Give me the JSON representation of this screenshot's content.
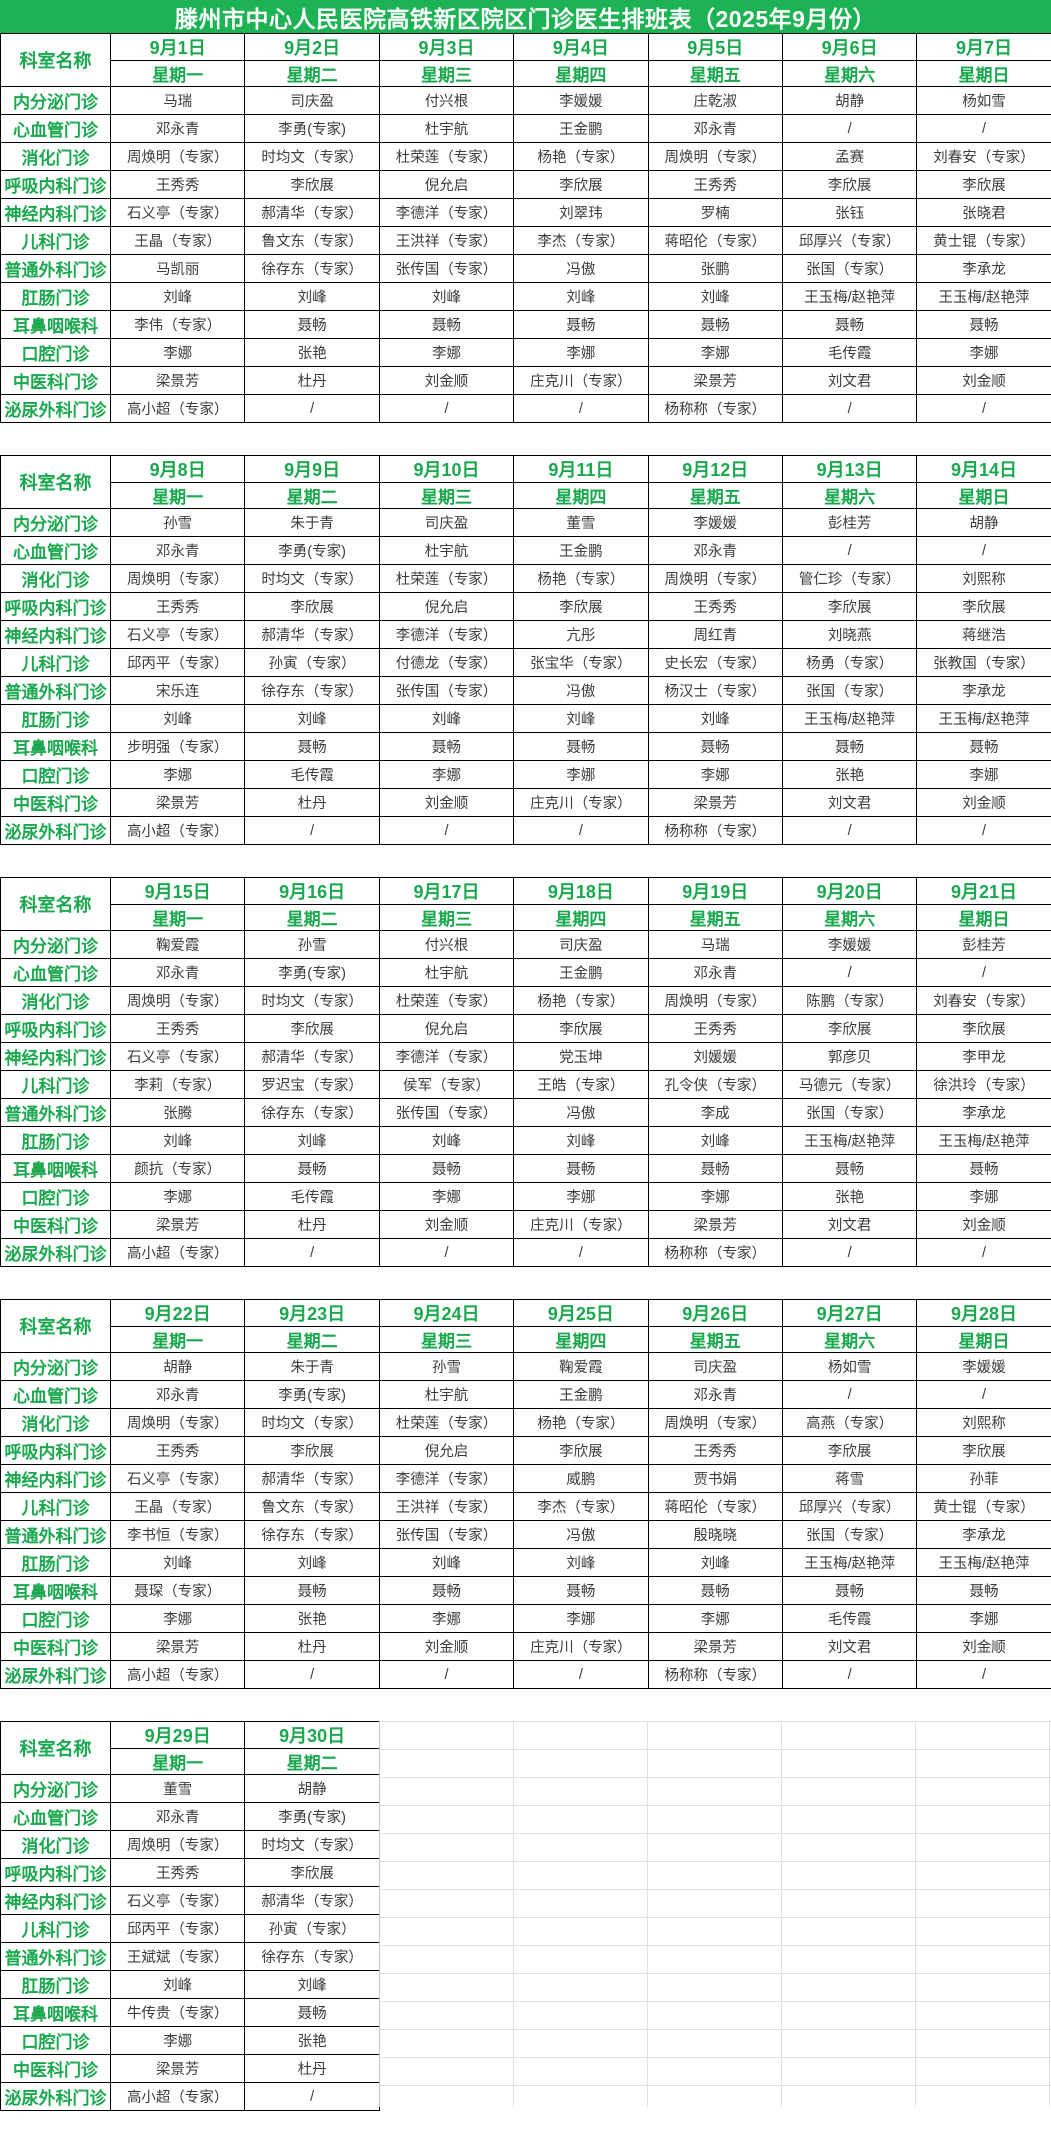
{
  "title": "滕州市中心人民医院高铁新区院区门诊医生排班表（2025年9月份）",
  "corner_label": "科室名称",
  "colors": {
    "title_bg": "#1db253",
    "title_text": "#ffffff",
    "accent_green": "#1aa84e",
    "cell_text": "#3c3c3c",
    "grid_line": "#000000",
    "faint_grid": "#dddddd"
  },
  "departments": [
    "内分泌门诊",
    "心血管门诊",
    "消化门诊",
    "呼吸内科门诊",
    "神经内科门诊",
    "儿科门诊",
    "普通外科门诊",
    "肛肠门诊",
    "耳鼻咽喉科",
    "口腔门诊",
    "中医科门诊",
    "泌尿外科门诊"
  ],
  "weeks": [
    {
      "dates": [
        "9月1日",
        "9月2日",
        "9月3日",
        "9月4日",
        "9月5日",
        "9月6日",
        "9月7日"
      ],
      "weekdays": [
        "星期一",
        "星期二",
        "星期三",
        "星期四",
        "星期五",
        "星期六",
        "星期日"
      ],
      "rows": [
        [
          "马瑞",
          "司庆盈",
          "付兴根",
          "李媛媛",
          "庄乾淑",
          "胡静",
          "杨如雪"
        ],
        [
          "邓永青",
          "李勇(专家)",
          "杜宇航",
          "王金鹏",
          "邓永青",
          "/",
          "/"
        ],
        [
          "周焕明（专家）",
          "时均文（专家）",
          "杜荣莲（专家）",
          "杨艳（专家）",
          "周焕明（专家）",
          "孟赛",
          "刘春安（专家）"
        ],
        [
          "王秀秀",
          "李欣展",
          "倪允启",
          "李欣展",
          "王秀秀",
          "李欣展",
          "李欣展"
        ],
        [
          "石义亭（专家）",
          "郝清华（专家）",
          "李德洋（专家）",
          "刘翠玮",
          "罗楠",
          "张钰",
          "张晓君"
        ],
        [
          "王晶（专家）",
          "鲁文东（专家）",
          "王洪祥（专家）",
          "李杰（专家）",
          "蒋昭伦（专家）",
          "邱厚兴（专家）",
          "黄士锟（专家）"
        ],
        [
          "马凯丽",
          "徐存东（专家）",
          "张传国（专家）",
          "冯傲",
          "张鹏",
          "张国（专家）",
          "李承龙"
        ],
        [
          "刘峰",
          "刘峰",
          "刘峰",
          "刘峰",
          "刘峰",
          "王玉梅/赵艳萍",
          "王玉梅/赵艳萍"
        ],
        [
          "李伟（专家）",
          "聂畅",
          "聂畅",
          "聂畅",
          "聂畅",
          "聂畅",
          "聂畅"
        ],
        [
          "李娜",
          "张艳",
          "李娜",
          "李娜",
          "李娜",
          "毛传霞",
          "李娜"
        ],
        [
          "梁景芳",
          "杜丹",
          "刘金顺",
          "庄克川（专家）",
          "梁景芳",
          "刘文君",
          "刘金顺"
        ],
        [
          "高小超（专家）",
          "/",
          "/",
          "/",
          "杨称称（专家）",
          "/",
          "/"
        ]
      ]
    },
    {
      "dates": [
        "9月8日",
        "9月9日",
        "9月10日",
        "9月11日",
        "9月12日",
        "9月13日",
        "9月14日"
      ],
      "weekdays": [
        "星期一",
        "星期二",
        "星期三",
        "星期四",
        "星期五",
        "星期六",
        "星期日"
      ],
      "rows": [
        [
          "孙雪",
          "朱于青",
          "司庆盈",
          "董雪",
          "李媛媛",
          "彭桂芳",
          "胡静"
        ],
        [
          "邓永青",
          "李勇(专家)",
          "杜宇航",
          "王金鹏",
          "邓永青",
          "/",
          "/"
        ],
        [
          "周焕明（专家）",
          "时均文（专家）",
          "杜荣莲（专家）",
          "杨艳（专家）",
          "周焕明（专家）",
          "管仁珍（专家）",
          "刘熙称"
        ],
        [
          "王秀秀",
          "李欣展",
          "倪允启",
          "李欣展",
          "王秀秀",
          "李欣展",
          "李欣展"
        ],
        [
          "石义亭（专家）",
          "郝清华（专家）",
          "李德洋（专家）",
          "亢彤",
          "周红青",
          "刘晓燕",
          "蒋继浩"
        ],
        [
          "邱丙平（专家）",
          "孙寅（专家）",
          "付德龙（专家）",
          "张宝华（专家）",
          "史长宏（专家）",
          "杨勇（专家）",
          "张教国（专家）"
        ],
        [
          "宋乐连",
          "徐存东（专家）",
          "张传国（专家）",
          "冯傲",
          "杨汉士（专家）",
          "张国（专家）",
          "李承龙"
        ],
        [
          "刘峰",
          "刘峰",
          "刘峰",
          "刘峰",
          "刘峰",
          "王玉梅/赵艳萍",
          "王玉梅/赵艳萍"
        ],
        [
          "步明强（专家）",
          "聂畅",
          "聂畅",
          "聂畅",
          "聂畅",
          "聂畅",
          "聂畅"
        ],
        [
          "李娜",
          "毛传霞",
          "李娜",
          "李娜",
          "李娜",
          "张艳",
          "李娜"
        ],
        [
          "梁景芳",
          "杜丹",
          "刘金顺",
          "庄克川（专家）",
          "梁景芳",
          "刘文君",
          "刘金顺"
        ],
        [
          "高小超（专家）",
          "/",
          "/",
          "/",
          "杨称称（专家）",
          "/",
          "/"
        ]
      ]
    },
    {
      "dates": [
        "9月15日",
        "9月16日",
        "9月17日",
        "9月18日",
        "9月19日",
        "9月20日",
        "9月21日"
      ],
      "weekdays": [
        "星期一",
        "星期二",
        "星期三",
        "星期四",
        "星期五",
        "星期六",
        "星期日"
      ],
      "rows": [
        [
          "鞠爱霞",
          "孙雪",
          "付兴根",
          "司庆盈",
          "马瑞",
          "李媛媛",
          "彭桂芳"
        ],
        [
          "邓永青",
          "李勇(专家)",
          "杜宇航",
          "王金鹏",
          "邓永青",
          "/",
          "/"
        ],
        [
          "周焕明（专家）",
          "时均文（专家）",
          "杜荣莲（专家）",
          "杨艳（专家）",
          "周焕明（专家）",
          "陈鹏（专家）",
          "刘春安（专家）"
        ],
        [
          "王秀秀",
          "李欣展",
          "倪允启",
          "李欣展",
          "王秀秀",
          "李欣展",
          "李欣展"
        ],
        [
          "石义亭（专家）",
          "郝清华（专家）",
          "李德洋（专家）",
          "党玉坤",
          "刘媛媛",
          "郭彦贝",
          "李甲龙"
        ],
        [
          "李莉（专家）",
          "罗迟宝（专家）",
          "侯军（专家）",
          "王皓（专家）",
          "孔令侠（专家）",
          "马德元（专家）",
          "徐洪玲（专家）"
        ],
        [
          "张腾",
          "徐存东（专家）",
          "张传国（专家）",
          "冯傲",
          "李成",
          "张国（专家）",
          "李承龙"
        ],
        [
          "刘峰",
          "刘峰",
          "刘峰",
          "刘峰",
          "刘峰",
          "王玉梅/赵艳萍",
          "王玉梅/赵艳萍"
        ],
        [
          "颜抗（专家）",
          "聂畅",
          "聂畅",
          "聂畅",
          "聂畅",
          "聂畅",
          "聂畅"
        ],
        [
          "李娜",
          "毛传霞",
          "李娜",
          "李娜",
          "李娜",
          "张艳",
          "李娜"
        ],
        [
          "梁景芳",
          "杜丹",
          "刘金顺",
          "庄克川（专家）",
          "梁景芳",
          "刘文君",
          "刘金顺"
        ],
        [
          "高小超（专家）",
          "/",
          "/",
          "/",
          "杨称称（专家）",
          "/",
          "/"
        ]
      ]
    },
    {
      "dates": [
        "9月22日",
        "9月23日",
        "9月24日",
        "9月25日",
        "9月26日",
        "9月27日",
        "9月28日"
      ],
      "weekdays": [
        "星期一",
        "星期二",
        "星期三",
        "星期四",
        "星期五",
        "星期六",
        "星期日"
      ],
      "rows": [
        [
          "胡静",
          "朱于青",
          "孙雪",
          "鞠爱霞",
          "司庆盈",
          "杨如雪",
          "李媛媛"
        ],
        [
          "邓永青",
          "李勇(专家)",
          "杜宇航",
          "王金鹏",
          "邓永青",
          "/",
          "/"
        ],
        [
          "周焕明（专家）",
          "时均文（专家）",
          "杜荣莲（专家）",
          "杨艳（专家）",
          "周焕明（专家）",
          "高燕（专家）",
          "刘熙称"
        ],
        [
          "王秀秀",
          "李欣展",
          "倪允启",
          "李欣展",
          "王秀秀",
          "李欣展",
          "李欣展"
        ],
        [
          "石义亭（专家）",
          "郝清华（专家）",
          "李德洋（专家）",
          "威鹏",
          "贾书娟",
          "蒋雪",
          "孙菲"
        ],
        [
          "王晶（专家）",
          "鲁文东（专家）",
          "王洪祥（专家）",
          "李杰（专家）",
          "蒋昭伦（专家）",
          "邱厚兴（专家）",
          "黄士锟（专家）"
        ],
        [
          "李书恒（专家）",
          "徐存东（专家）",
          "张传国（专家）",
          "冯傲",
          "殷晓晓",
          "张国（专家）",
          "李承龙"
        ],
        [
          "刘峰",
          "刘峰",
          "刘峰",
          "刘峰",
          "刘峰",
          "王玉梅/赵艳萍",
          "王玉梅/赵艳萍"
        ],
        [
          "聂琛（专家）",
          "聂畅",
          "聂畅",
          "聂畅",
          "聂畅",
          "聂畅",
          "聂畅"
        ],
        [
          "李娜",
          "张艳",
          "李娜",
          "李娜",
          "李娜",
          "毛传霞",
          "李娜"
        ],
        [
          "梁景芳",
          "杜丹",
          "刘金顺",
          "庄克川（专家）",
          "梁景芳",
          "刘文君",
          "刘金顺"
        ],
        [
          "高小超（专家）",
          "/",
          "/",
          "/",
          "杨称称（专家）",
          "/",
          "/"
        ]
      ]
    },
    {
      "dates": [
        "9月29日",
        "9月30日"
      ],
      "weekdays": [
        "星期一",
        "星期二"
      ],
      "rows": [
        [
          "董雪",
          "胡静"
        ],
        [
          "邓永青",
          "李勇(专家)"
        ],
        [
          "周焕明（专家）",
          "时均文（专家）"
        ],
        [
          "王秀秀",
          "李欣展"
        ],
        [
          "石义亭（专家）",
          "郝清华（专家）"
        ],
        [
          "邱丙平（专家）",
          "孙寅（专家）"
        ],
        [
          "王斌斌（专家）",
          "徐存东（专家）"
        ],
        [
          "刘峰",
          "刘峰"
        ],
        [
          "牛传贵（专家）",
          "聂畅"
        ],
        [
          "李娜",
          "张艳"
        ],
        [
          "梁景芳",
          "杜丹"
        ],
        [
          "高小超（专家）",
          "/"
        ]
      ]
    }
  ]
}
